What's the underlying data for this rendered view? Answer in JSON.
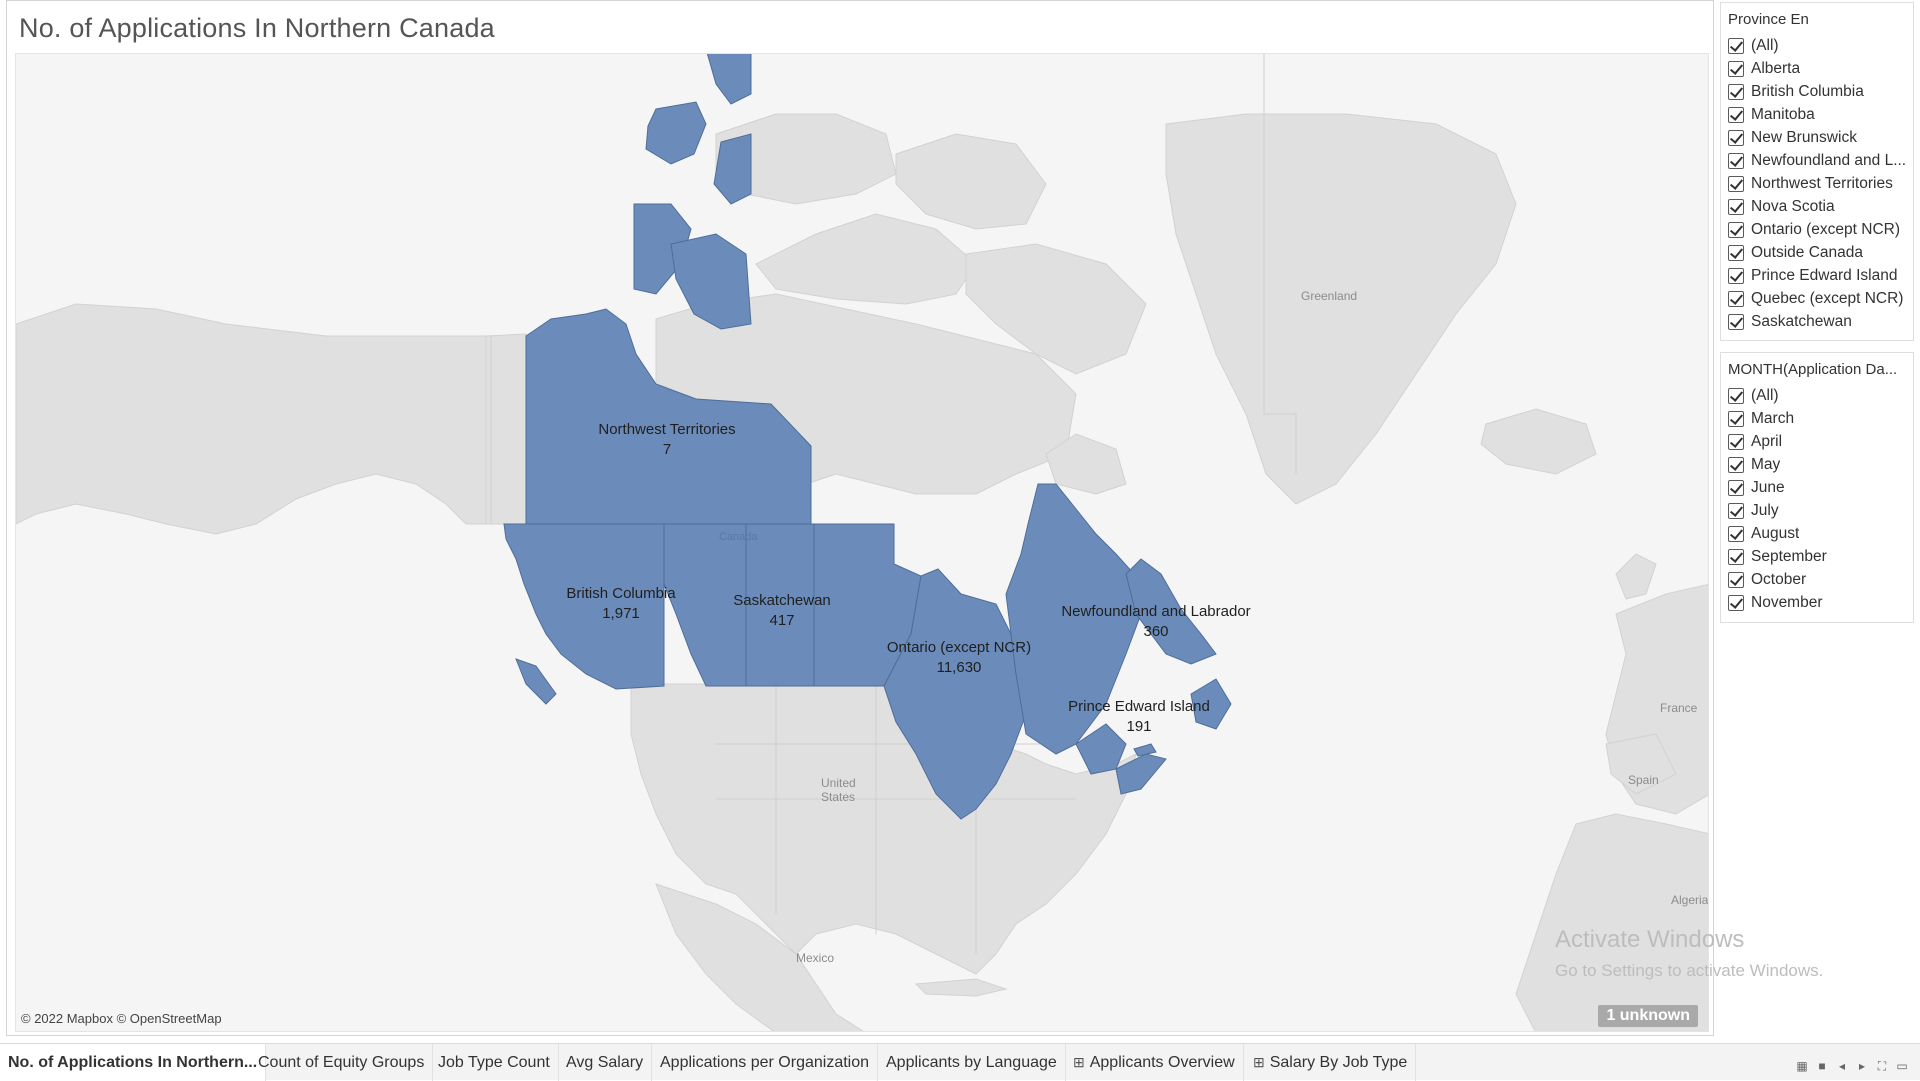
{
  "sheet": {
    "title": "No. of Applications In Northern Canada"
  },
  "map": {
    "attribution": "© 2022 Mapbox © OpenStreetMap",
    "unknown_badge": "1 unknown",
    "fill_color": "#6b8cba",
    "base_labels": {
      "greenland": "Greenland",
      "canada": "Canada",
      "united_states_line1": "United",
      "united_states_line2": "States",
      "mexico": "Mexico",
      "france": "France",
      "spain": "Spain",
      "algeria": "Algeria"
    },
    "province_labels": [
      {
        "name": "Northwest Territories",
        "value": "7"
      },
      {
        "name": "British Columbia",
        "value": "1,971"
      },
      {
        "name": "Saskatchewan",
        "value": "417"
      },
      {
        "name": "Ontario (except NCR)",
        "value": "11,630"
      },
      {
        "name": "Newfoundland and Labrador",
        "value": "360"
      },
      {
        "name": "Prince Edward Island",
        "value": "191"
      }
    ]
  },
  "watermark": {
    "line1": "Activate Windows",
    "line2": "Go to Settings to activate Windows."
  },
  "filters": {
    "province": {
      "title": "Province En",
      "items": [
        "(All)",
        "Alberta",
        "British Columbia",
        "Manitoba",
        "New Brunswick",
        "Newfoundland and L...",
        "Northwest Territories",
        "Nova Scotia",
        "Ontario (except NCR)",
        "Outside Canada",
        "Prince Edward Island",
        "Quebec (except NCR)",
        "Saskatchewan"
      ]
    },
    "month": {
      "title": "MONTH(Application Da...",
      "items": [
        "(All)",
        "March",
        "April",
        "May",
        "June",
        "July",
        "August",
        "September",
        "October",
        "November"
      ]
    }
  },
  "tabs": [
    {
      "label": "No. of Applications In Northern...",
      "icon": "",
      "active": true
    },
    {
      "label": "Count of Equity Groups",
      "icon": ""
    },
    {
      "label": "Job Type Count",
      "icon": ""
    },
    {
      "label": "Avg Salary",
      "icon": ""
    },
    {
      "label": "Applications per Organization",
      "icon": ""
    },
    {
      "label": "Applicants by Language",
      "icon": ""
    },
    {
      "label": "Applicants Overview",
      "icon": "dashboard-icon"
    },
    {
      "label": "Salary By Job Type",
      "icon": "dashboard-icon"
    }
  ]
}
